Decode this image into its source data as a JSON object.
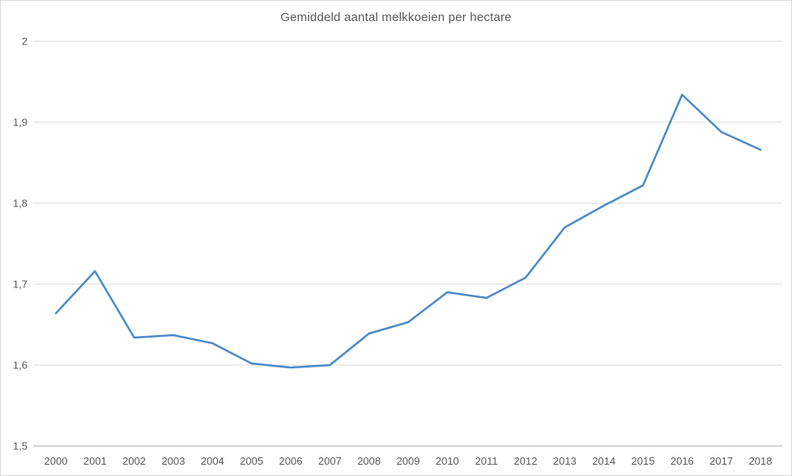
{
  "window": {
    "background_color": "#ffffff",
    "border_color": "#d9d9d9"
  },
  "chart_data": {
    "type": "line",
    "title": "Gemiddeld aantal melkkoeien per hectare",
    "categories": [
      "2000",
      "2001",
      "2002",
      "2003",
      "2004",
      "2005",
      "2006",
      "2007",
      "2008",
      "2009",
      "2010",
      "2011",
      "2012",
      "2013",
      "2014",
      "2015",
      "2016",
      "2017",
      "2018"
    ],
    "series": [
      {
        "name": "Gemiddeld aantal melkkoeien per hectare",
        "values": [
          1.664,
          1.716,
          1.634,
          1.637,
          1.627,
          1.602,
          1.597,
          1.6,
          1.639,
          1.653,
          1.69,
          1.683,
          1.708,
          1.77,
          1.797,
          1.822,
          1.934,
          1.888,
          1.866
        ]
      }
    ],
    "xlabel": "",
    "ylabel": "",
    "ylim": [
      1.5,
      2.0
    ],
    "y_ticks": [
      2.0,
      1.9,
      1.8,
      1.7,
      1.6,
      1.5
    ],
    "y_tick_labels": [
      "2",
      "1,9",
      "1,8",
      "1,7",
      "1,6",
      "1,5"
    ],
    "grid": true,
    "legend": "none",
    "colors": {
      "line": "#4a8bc9",
      "gridline": "#d9d9d9",
      "axis_line": "#a6a6a6",
      "text": "#595959"
    }
  }
}
